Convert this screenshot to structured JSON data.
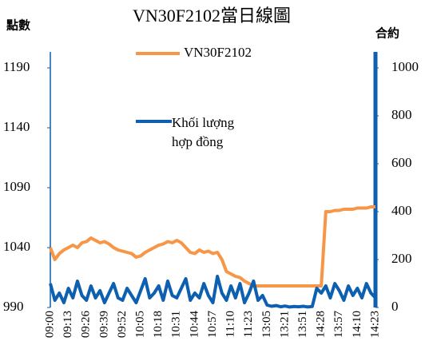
{
  "chart_data": {
    "type": "line",
    "title": "VN30F2102當日線圖",
    "y_label": "點數",
    "y2_label": "合約",
    "categories": [
      "09:00",
      null,
      null,
      null,
      "09:13",
      null,
      null,
      null,
      "09:26",
      null,
      null,
      null,
      "09:39",
      null,
      null,
      null,
      "09:52",
      null,
      null,
      null,
      "10:05",
      null,
      null,
      null,
      "10:18",
      null,
      null,
      null,
      "10:31",
      null,
      null,
      null,
      "10:44",
      null,
      null,
      null,
      "10:57",
      null,
      null,
      null,
      "11:10",
      null,
      null,
      null,
      "11:23",
      null,
      null,
      null,
      "13:05",
      null,
      null,
      null,
      "13:21",
      null,
      null,
      null,
      "13:51",
      null,
      null,
      null,
      "14:28",
      null,
      null,
      null,
      "13:57",
      null,
      null,
      null,
      "14:10",
      null,
      null,
      null,
      "14:23"
    ],
    "series": [
      {
        "name": "VN30F2102",
        "color": "#f79646",
        "axis": "y",
        "values": [
          1040,
          1030,
          1035,
          1038,
          1040,
          1042,
          1040,
          1044,
          1045,
          1048,
          1046,
          1044,
          1045,
          1043,
          1040,
          1038,
          1037,
          1036,
          1035,
          1032,
          1033,
          1036,
          1038,
          1040,
          1042,
          1043,
          1045,
          1044,
          1046,
          1044,
          1040,
          1036,
          1035,
          1038,
          1036,
          1037,
          1035,
          1036,
          1030,
          1020,
          1018,
          1016,
          1015,
          1012,
          1010,
          1008,
          1008,
          1008,
          1008,
          1008,
          1008,
          1008,
          1008,
          1008,
          1008,
          1008,
          1008,
          1008,
          1008,
          1008,
          1008,
          1070,
          1070,
          1071,
          1071,
          1072,
          1072,
          1072,
          1073,
          1073,
          1073,
          1074,
          1074
        ]
      },
      {
        "name": "Khối lượng hợp đồng",
        "color": "#0d5fb0",
        "axis": "y2",
        "values": [
          100,
          30,
          60,
          20,
          80,
          40,
          110,
          50,
          30,
          90,
          40,
          70,
          20,
          60,
          100,
          40,
          30,
          80,
          50,
          20,
          70,
          120,
          40,
          60,
          90,
          30,
          110,
          50,
          40,
          80,
          120,
          30,
          60,
          40,
          100,
          50,
          20,
          130,
          60,
          30,
          90,
          40,
          100,
          20,
          60,
          110,
          30,
          50,
          10,
          5,
          8,
          3,
          6,
          2,
          4,
          3,
          5,
          2,
          4,
          80,
          60,
          90,
          40,
          100,
          70,
          30,
          90,
          50,
          80,
          40,
          100,
          60,
          40
        ]
      }
    ],
    "ylim": [
      990,
      1190
    ],
    "yticks": [
      990,
      1040,
      1090,
      1140,
      1190
    ],
    "y2lim": [
      0,
      1000
    ],
    "y2ticks": [
      0,
      200,
      400,
      600,
      800,
      1000
    ]
  }
}
